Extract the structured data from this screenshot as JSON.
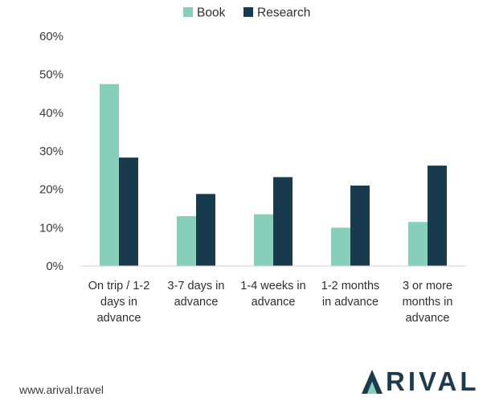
{
  "chart_data": {
    "type": "bar",
    "categories": [
      [
        "On trip / 1-2",
        "days in",
        "advance"
      ],
      [
        "3-7 days in",
        "advance"
      ],
      [
        "1-4 weeks in",
        "advance"
      ],
      [
        "1-2 months",
        "in advance"
      ],
      [
        "3 or more",
        "months in",
        "advance"
      ]
    ],
    "series": [
      {
        "name": "Book",
        "values": [
          47.5,
          13,
          13.5,
          10,
          11.5
        ],
        "color": "#88cfbb"
      },
      {
        "name": "Research",
        "values": [
          28.3,
          18.8,
          23.2,
          21,
          26.2
        ],
        "color": "#183a4d"
      }
    ],
    "ylim": [
      0,
      60
    ],
    "yticks": [
      "0%",
      "10%",
      "20%",
      "30%",
      "40%",
      "50%",
      "60%"
    ],
    "legend_position": "top-center",
    "grid": false
  },
  "footer": {
    "url": "www.arival.travel",
    "logo_text": "RIVAL",
    "logo_full": "ARIVAL"
  }
}
